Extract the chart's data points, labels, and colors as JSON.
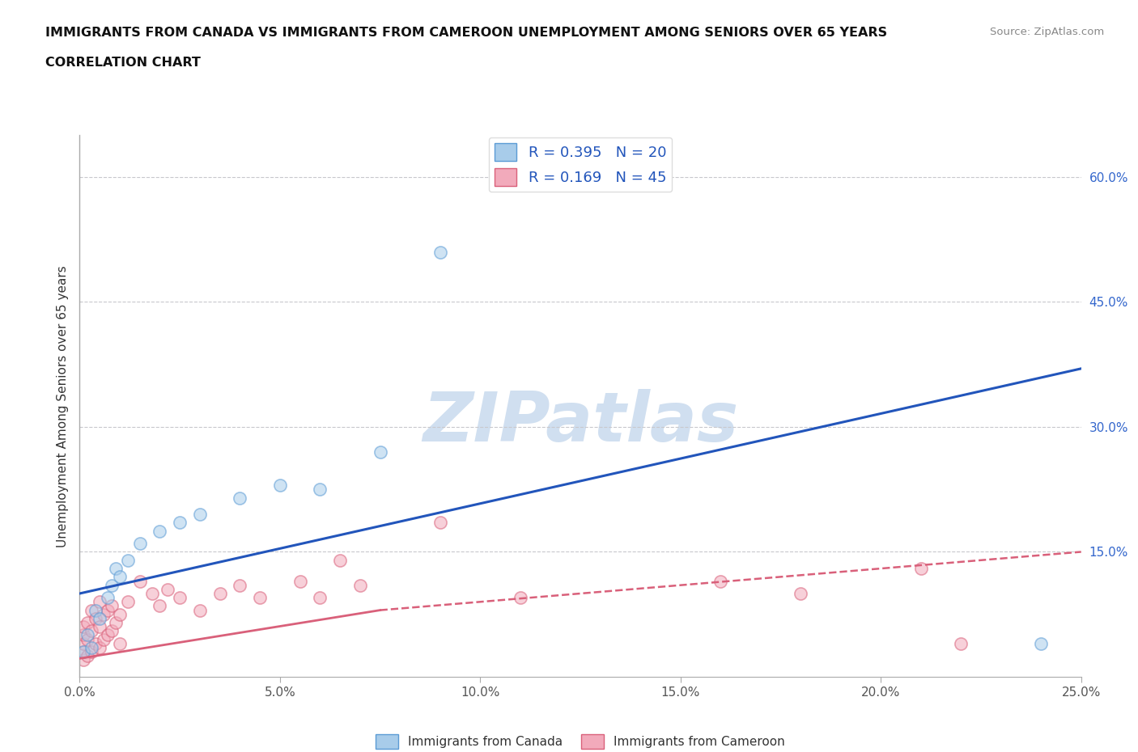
{
  "title_line1": "IMMIGRANTS FROM CANADA VS IMMIGRANTS FROM CAMEROON UNEMPLOYMENT AMONG SENIORS OVER 65 YEARS",
  "title_line2": "CORRELATION CHART",
  "source": "Source: ZipAtlas.com",
  "ylabel": "Unemployment Among Seniors over 65 years",
  "xlim": [
    0.0,
    0.25
  ],
  "ylim": [
    0.0,
    0.65
  ],
  "xticks": [
    0.0,
    0.05,
    0.1,
    0.15,
    0.2,
    0.25
  ],
  "xticklabels": [
    "0.0%",
    "5.0%",
    "10.0%",
    "15.0%",
    "20.0%",
    "25.0%"
  ],
  "yticks_right": [
    0.15,
    0.3,
    0.45,
    0.6
  ],
  "yticklabels_right": [
    "15.0%",
    "30.0%",
    "45.0%",
    "60.0%"
  ],
  "canada_color": "#A8CCEA",
  "cameroon_color": "#F2AABB",
  "canada_edge_color": "#5B9BD5",
  "cameroon_edge_color": "#D9607A",
  "canada_R": 0.395,
  "canada_N": 20,
  "cameroon_R": 0.169,
  "cameroon_N": 45,
  "trend_canada_color": "#2255BB",
  "trend_cameroon_color": "#D9607A",
  "watermark": "ZIPatlas",
  "watermark_color": "#D0DFF0",
  "canada_x": [
    0.001,
    0.002,
    0.003,
    0.004,
    0.005,
    0.007,
    0.008,
    0.009,
    0.01,
    0.012,
    0.015,
    0.02,
    0.025,
    0.03,
    0.04,
    0.05,
    0.06,
    0.075,
    0.09,
    0.24
  ],
  "canada_y": [
    0.03,
    0.05,
    0.035,
    0.08,
    0.07,
    0.095,
    0.11,
    0.13,
    0.12,
    0.14,
    0.16,
    0.175,
    0.185,
    0.195,
    0.215,
    0.23,
    0.225,
    0.27,
    0.51,
    0.04
  ],
  "cameroon_x": [
    0.001,
    0.001,
    0.001,
    0.001,
    0.001,
    0.002,
    0.002,
    0.002,
    0.003,
    0.003,
    0.003,
    0.004,
    0.004,
    0.005,
    0.005,
    0.005,
    0.006,
    0.006,
    0.007,
    0.007,
    0.008,
    0.008,
    0.009,
    0.01,
    0.01,
    0.012,
    0.015,
    0.018,
    0.02,
    0.022,
    0.025,
    0.03,
    0.035,
    0.04,
    0.045,
    0.055,
    0.06,
    0.065,
    0.07,
    0.09,
    0.11,
    0.16,
    0.18,
    0.21,
    0.22
  ],
  "cameroon_y": [
    0.02,
    0.03,
    0.04,
    0.05,
    0.06,
    0.025,
    0.045,
    0.065,
    0.03,
    0.055,
    0.08,
    0.04,
    0.07,
    0.035,
    0.06,
    0.09,
    0.045,
    0.075,
    0.05,
    0.08,
    0.055,
    0.085,
    0.065,
    0.04,
    0.075,
    0.09,
    0.115,
    0.1,
    0.085,
    0.105,
    0.095,
    0.08,
    0.1,
    0.11,
    0.095,
    0.115,
    0.095,
    0.14,
    0.11,
    0.185,
    0.095,
    0.115,
    0.1,
    0.13,
    0.04
  ],
  "dot_size": 120,
  "dot_alpha": 0.55,
  "background_color": "#FFFFFF",
  "grid_color": "#C8C8CC"
}
